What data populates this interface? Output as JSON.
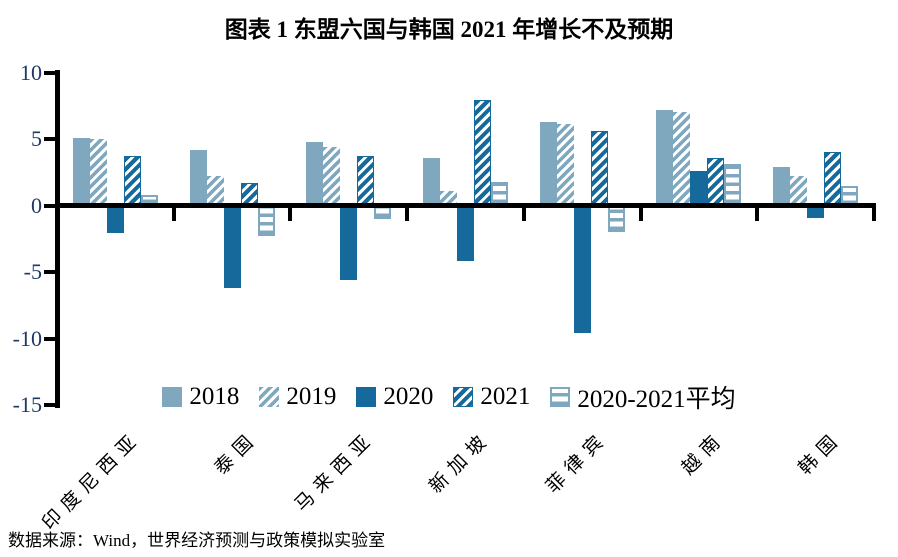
{
  "title": "图表 1 东盟六国与韩国 2021 年增长不及预期",
  "source": "数据来源：Wind，世界经济预测与政策模拟实验室",
  "colors": {
    "light": "#7FA8BF",
    "dark": "#16699B",
    "axis": "#000000",
    "tick_label": "#1F3864"
  },
  "chart_data": {
    "type": "bar",
    "title": "图表 1 东盟六国与韩国 2021 年增长不及预期",
    "xlabel": "",
    "ylabel": "",
    "ylim": [
      -15,
      10
    ],
    "yticks": [
      10,
      5,
      0,
      -5,
      -10,
      -15
    ],
    "grid": false,
    "legend_position": "bottom-center-inside",
    "categories": [
      "印度尼西亚",
      "泰国",
      "马来西亚",
      "新加坡",
      "菲律宾",
      "越南",
      "韩国"
    ],
    "series": [
      {
        "name": "2018",
        "pattern": "solid-light",
        "values": [
          5.1,
          4.2,
          4.8,
          3.6,
          6.3,
          7.2,
          2.9
        ]
      },
      {
        "name": "2019",
        "pattern": "hatch-light",
        "values": [
          5.0,
          2.2,
          4.4,
          1.1,
          6.1,
          7.0,
          2.2
        ]
      },
      {
        "name": "2020",
        "pattern": "solid-dark",
        "values": [
          -2.1,
          -6.2,
          -5.6,
          -4.2,
          -9.6,
          2.6,
          -0.9
        ]
      },
      {
        "name": "2021",
        "pattern": "hatch-dark",
        "values": [
          3.7,
          1.7,
          3.7,
          7.9,
          5.6,
          3.6,
          4.0
        ]
      },
      {
        "name": "2020-2021平均",
        "pattern": "stripe-light",
        "values": [
          0.8,
          -2.3,
          -1.0,
          1.8,
          -2.0,
          3.1,
          1.5
        ]
      }
    ]
  }
}
